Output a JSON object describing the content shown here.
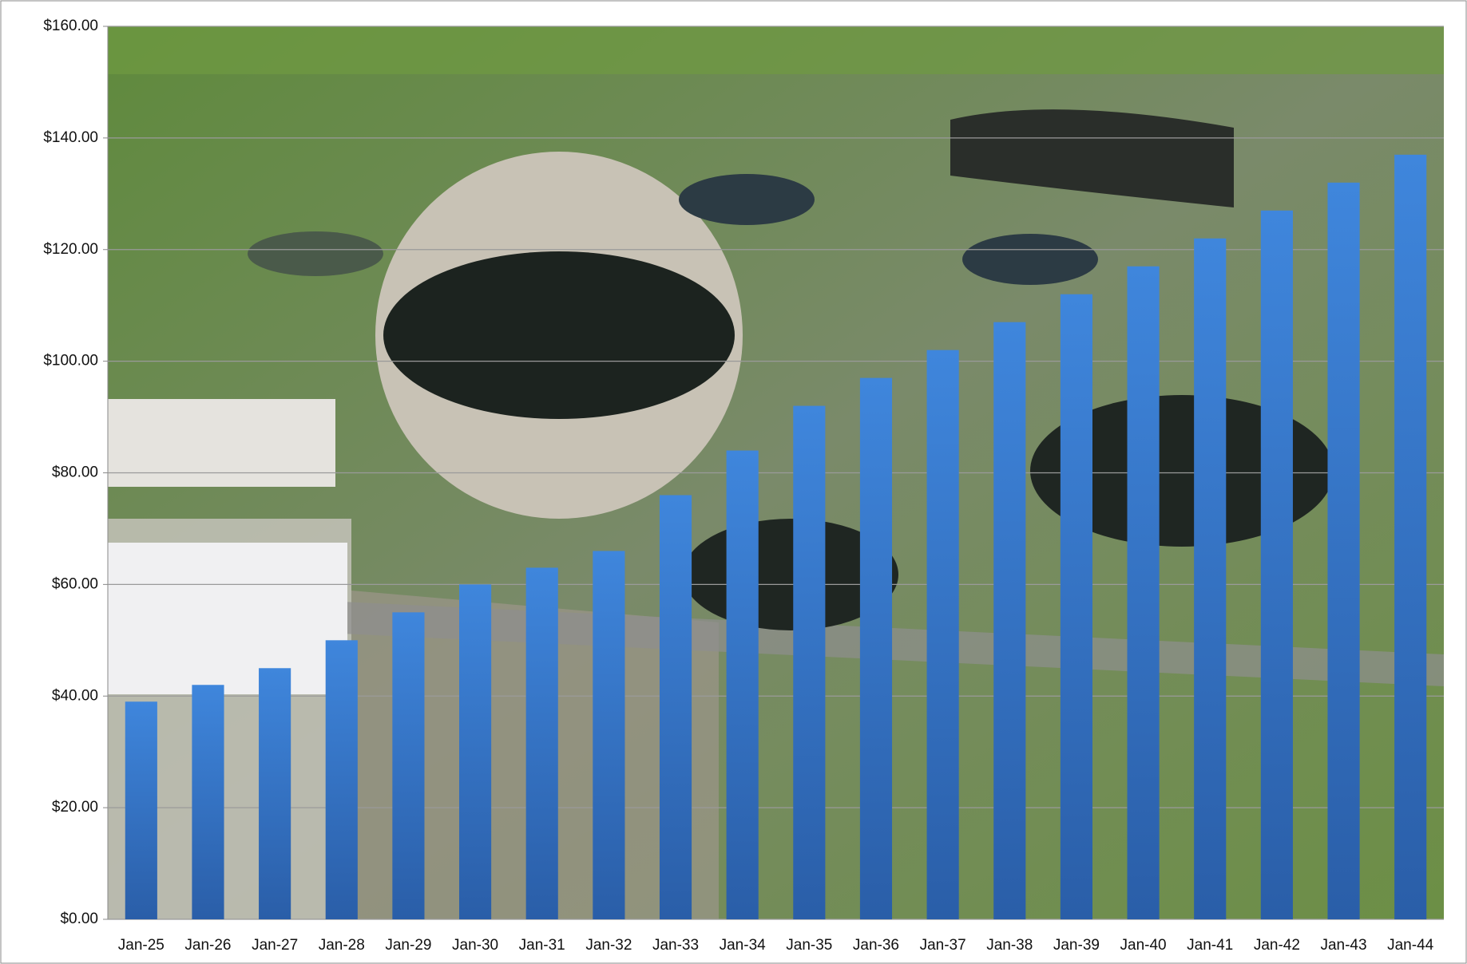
{
  "chart_data": {
    "type": "bar",
    "categories": [
      "Jan-25",
      "Jan-26",
      "Jan-27",
      "Jan-28",
      "Jan-29",
      "Jan-30",
      "Jan-31",
      "Jan-32",
      "Jan-33",
      "Jan-34",
      "Jan-35",
      "Jan-36",
      "Jan-37",
      "Jan-38",
      "Jan-39",
      "Jan-40",
      "Jan-41",
      "Jan-42",
      "Jan-43",
      "Jan-44"
    ],
    "values": [
      39,
      42,
      45,
      50,
      55,
      60,
      63,
      66,
      76,
      84,
      92,
      97,
      102,
      107,
      112,
      117,
      122,
      127,
      132,
      137
    ],
    "color": "#3479d0",
    "ylim": [
      0,
      160
    ],
    "yticks": [
      {
        "value": 0,
        "label": "$0.00"
      },
      {
        "value": 20,
        "label": "$20.00"
      },
      {
        "value": 40,
        "label": "$40.00"
      },
      {
        "value": 60,
        "label": "$60.00"
      },
      {
        "value": 80,
        "label": "$80.00"
      },
      {
        "value": 100,
        "label": "$100.00"
      },
      {
        "value": 120,
        "label": "$120.00"
      },
      {
        "value": 140,
        "label": "$140.00"
      },
      {
        "value": 160,
        "label": "$160.00"
      }
    ],
    "grid": true
  }
}
